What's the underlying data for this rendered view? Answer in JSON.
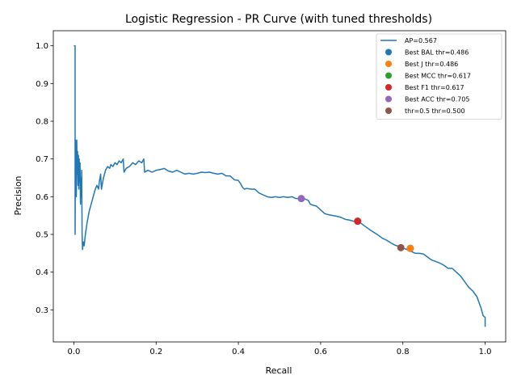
{
  "chart_data": {
    "type": "line",
    "title": "Logistic Regression - PR Curve (with tuned thresholds)",
    "xlabel": "Recall",
    "ylabel": "Precision",
    "xlim": [
      -0.05,
      1.05
    ],
    "ylim": [
      0.215,
      1.04
    ],
    "xticks": [
      0.0,
      0.2,
      0.4,
      0.6,
      0.8,
      1.0
    ],
    "xtick_labels": [
      "0.0",
      "0.2",
      "0.4",
      "0.6",
      "0.8",
      "1.0"
    ],
    "yticks": [
      0.3,
      0.4,
      0.5,
      0.6,
      0.7,
      0.8,
      0.9,
      1.0
    ],
    "ytick_labels": [
      "0.3",
      "0.4",
      "0.5",
      "0.6",
      "0.7",
      "0.8",
      "0.9",
      "1.0"
    ],
    "grid": false,
    "legend_position": "upper-right",
    "series": [
      {
        "name": "AP=0.567",
        "color": "#1f77b4",
        "points": [
          [
            0.0,
            1.0
          ],
          [
            0.003,
            1.0
          ],
          [
            0.003,
            0.5
          ],
          [
            0.004,
            0.75
          ],
          [
            0.006,
            0.6
          ],
          [
            0.007,
            0.75
          ],
          [
            0.008,
            0.66
          ],
          [
            0.009,
            0.72
          ],
          [
            0.01,
            0.63
          ],
          [
            0.011,
            0.71
          ],
          [
            0.012,
            0.62
          ],
          [
            0.013,
            0.7
          ],
          [
            0.014,
            0.64
          ],
          [
            0.015,
            0.69
          ],
          [
            0.016,
            0.58
          ],
          [
            0.017,
            0.65
          ],
          [
            0.018,
            0.6
          ],
          [
            0.019,
            0.67
          ],
          [
            0.02,
            0.5
          ],
          [
            0.021,
            0.46
          ],
          [
            0.023,
            0.48
          ],
          [
            0.025,
            0.47
          ],
          [
            0.028,
            0.5
          ],
          [
            0.032,
            0.53
          ],
          [
            0.037,
            0.56
          ],
          [
            0.042,
            0.58
          ],
          [
            0.047,
            0.6
          ],
          [
            0.052,
            0.62
          ],
          [
            0.056,
            0.63
          ],
          [
            0.06,
            0.62
          ],
          [
            0.062,
            0.64
          ],
          [
            0.065,
            0.66
          ],
          [
            0.067,
            0.62
          ],
          [
            0.072,
            0.65
          ],
          [
            0.077,
            0.67
          ],
          [
            0.082,
            0.68
          ],
          [
            0.087,
            0.675
          ],
          [
            0.09,
            0.685
          ],
          [
            0.095,
            0.68
          ],
          [
            0.1,
            0.69
          ],
          [
            0.105,
            0.685
          ],
          [
            0.11,
            0.695
          ],
          [
            0.115,
            0.69
          ],
          [
            0.12,
            0.7
          ],
          [
            0.122,
            0.665
          ],
          [
            0.127,
            0.675
          ],
          [
            0.135,
            0.68
          ],
          [
            0.143,
            0.69
          ],
          [
            0.15,
            0.685
          ],
          [
            0.158,
            0.695
          ],
          [
            0.165,
            0.69
          ],
          [
            0.17,
            0.7
          ],
          [
            0.172,
            0.665
          ],
          [
            0.18,
            0.67
          ],
          [
            0.19,
            0.665
          ],
          [
            0.2,
            0.67
          ],
          [
            0.21,
            0.672
          ],
          [
            0.22,
            0.675
          ],
          [
            0.23,
            0.668
          ],
          [
            0.24,
            0.665
          ],
          [
            0.25,
            0.67
          ],
          [
            0.26,
            0.665
          ],
          [
            0.27,
            0.66
          ],
          [
            0.28,
            0.662
          ],
          [
            0.29,
            0.66
          ],
          [
            0.3,
            0.662
          ],
          [
            0.31,
            0.665
          ],
          [
            0.32,
            0.664
          ],
          [
            0.33,
            0.665
          ],
          [
            0.34,
            0.662
          ],
          [
            0.35,
            0.66
          ],
          [
            0.36,
            0.662
          ],
          [
            0.37,
            0.655
          ],
          [
            0.38,
            0.655
          ],
          [
            0.39,
            0.645
          ],
          [
            0.4,
            0.643
          ],
          [
            0.405,
            0.635
          ],
          [
            0.41,
            0.625
          ],
          [
            0.415,
            0.62
          ],
          [
            0.42,
            0.622
          ],
          [
            0.43,
            0.62
          ],
          [
            0.44,
            0.62
          ],
          [
            0.45,
            0.61
          ],
          [
            0.46,
            0.605
          ],
          [
            0.47,
            0.6
          ],
          [
            0.48,
            0.598
          ],
          [
            0.49,
            0.6
          ],
          [
            0.5,
            0.598
          ],
          [
            0.51,
            0.6
          ],
          [
            0.52,
            0.598
          ],
          [
            0.53,
            0.6
          ],
          [
            0.54,
            0.595
          ],
          [
            0.55,
            0.595
          ],
          [
            0.56,
            0.595
          ],
          [
            0.57,
            0.59
          ],
          [
            0.575,
            0.58
          ],
          [
            0.58,
            0.578
          ],
          [
            0.59,
            0.575
          ],
          [
            0.6,
            0.565
          ],
          [
            0.61,
            0.555
          ],
          [
            0.62,
            0.552
          ],
          [
            0.63,
            0.55
          ],
          [
            0.64,
            0.548
          ],
          [
            0.65,
            0.545
          ],
          [
            0.66,
            0.54
          ],
          [
            0.67,
            0.538
          ],
          [
            0.68,
            0.535
          ],
          [
            0.69,
            0.535
          ],
          [
            0.7,
            0.528
          ],
          [
            0.71,
            0.52
          ],
          [
            0.72,
            0.512
          ],
          [
            0.73,
            0.505
          ],
          [
            0.74,
            0.498
          ],
          [
            0.75,
            0.49
          ],
          [
            0.76,
            0.485
          ],
          [
            0.77,
            0.478
          ],
          [
            0.78,
            0.472
          ],
          [
            0.79,
            0.468
          ],
          [
            0.8,
            0.464
          ],
          [
            0.81,
            0.46
          ],
          [
            0.82,
            0.455
          ],
          [
            0.83,
            0.45
          ],
          [
            0.84,
            0.45
          ],
          [
            0.85,
            0.448
          ],
          [
            0.86,
            0.44
          ],
          [
            0.87,
            0.432
          ],
          [
            0.88,
            0.428
          ],
          [
            0.89,
            0.424
          ],
          [
            0.9,
            0.418
          ],
          [
            0.91,
            0.41
          ],
          [
            0.92,
            0.41
          ],
          [
            0.93,
            0.4
          ],
          [
            0.94,
            0.39
          ],
          [
            0.95,
            0.375
          ],
          [
            0.96,
            0.36
          ],
          [
            0.97,
            0.35
          ],
          [
            0.98,
            0.335
          ],
          [
            0.99,
            0.305
          ],
          [
            0.995,
            0.285
          ],
          [
            1.0,
            0.28
          ],
          [
            1.0,
            0.255
          ]
        ]
      }
    ],
    "threshold_points": [
      {
        "label": "Best BAL thr=0.486",
        "color": "#1f77b4",
        "recall": 0.818,
        "precision": 0.463
      },
      {
        "label": "Best J thr=0.486",
        "color": "#ff7f0e",
        "recall": 0.818,
        "precision": 0.463
      },
      {
        "label": "Best MCC thr=0.617",
        "color": "#2ca02c",
        "recall": 0.69,
        "precision": 0.535
      },
      {
        "label": "Best F1 thr=0.617",
        "color": "#d62728",
        "recall": 0.69,
        "precision": 0.535
      },
      {
        "label": "Best ACC thr=0.705",
        "color": "#9467bd",
        "recall": 0.553,
        "precision": 0.595
      },
      {
        "label": "thr=0.5 thr=0.500",
        "color": "#8c564b",
        "recall": 0.795,
        "precision": 0.465
      }
    ]
  }
}
